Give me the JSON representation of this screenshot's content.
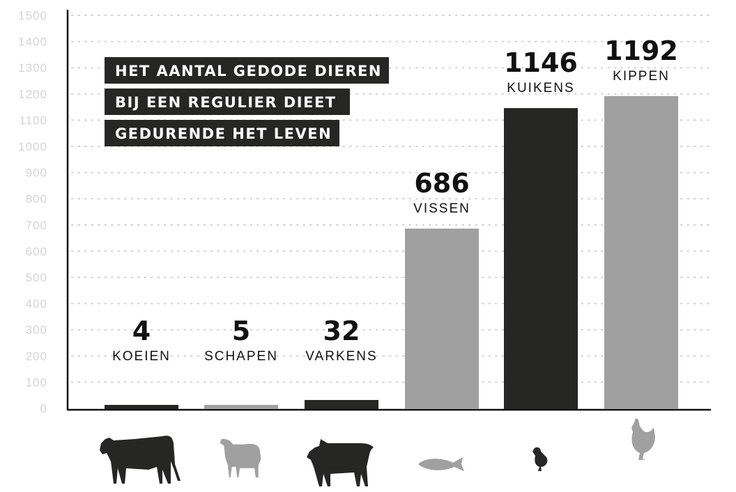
{
  "chart_data": {
    "type": "bar",
    "title_lines": [
      "HET AANTAL GEDODE DIEREN",
      "BIJ EEN REGULIER DIEET",
      "GEDURENDE HET LEVEN"
    ],
    "categories": [
      "KOEIEN",
      "SCHAPEN",
      "VARKENS",
      "VISSEN",
      "KUIKENS",
      "KIPPEN"
    ],
    "values": [
      4,
      5,
      32,
      686,
      1146,
      1192
    ],
    "value_labels": [
      "4",
      "5",
      "32",
      "686",
      "1146",
      "1192"
    ],
    "bar_colors": [
      "#262624",
      "#a0a0a0",
      "#262624",
      "#a0a0a0",
      "#262624",
      "#a0a0a0"
    ],
    "icons": [
      "cow-icon",
      "sheep-icon",
      "pig-icon",
      "fish-icon",
      "chick-icon",
      "chicken-icon"
    ],
    "yticks": [
      0,
      100,
      200,
      300,
      400,
      500,
      600,
      700,
      800,
      900,
      1000,
      1100,
      1200,
      1300,
      1400,
      1500
    ],
    "ylim": [
      0,
      1500
    ],
    "grid": "dotted horizontal",
    "xlabel": "",
    "ylabel": ""
  }
}
